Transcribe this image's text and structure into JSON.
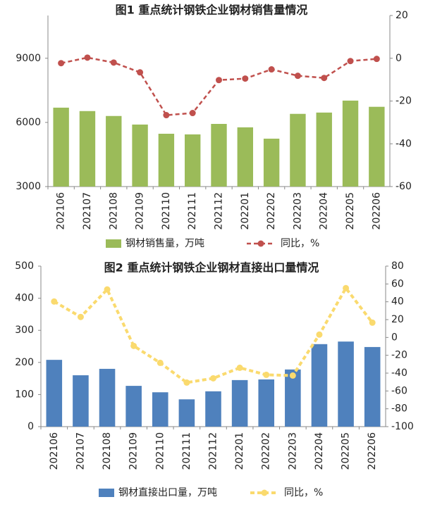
{
  "chart_data": [
    {
      "type": "bar-line",
      "title": "图1  重点统计钢铁企业钢材销售量情况",
      "categories": [
        "202106",
        "202107",
        "202108",
        "202109",
        "202110",
        "202111",
        "202112",
        "202201",
        "202202",
        "202203",
        "202204",
        "202205",
        "202206"
      ],
      "series": [
        {
          "name": "钢材销售量，万吨",
          "type": "bar",
          "color": "#9bbb59",
          "values": [
            6690,
            6530,
            6300,
            5900,
            5470,
            5440,
            5930,
            5770,
            5240,
            6400,
            6460,
            7020,
            6730
          ]
        },
        {
          "name": "同比，%",
          "type": "line",
          "axis": "y2",
          "color": "#c0504d",
          "values": [
            -2.3,
            0.3,
            -2,
            -6.6,
            -26.6,
            -25.6,
            -10.2,
            -9.5,
            -5.2,
            -8.2,
            -9.2,
            -1.3,
            -0.3
          ]
        }
      ],
      "ylim": [
        3000,
        11000
      ],
      "yticks": [
        3000,
        6000,
        9000
      ],
      "y2lim": [
        -60,
        20
      ],
      "y2ticks": [
        -60,
        -40,
        -20,
        0,
        20
      ],
      "grid": false
    },
    {
      "type": "bar-line",
      "title": "图2  重点统计钢铁企业钢材直接出口量情况",
      "categories": [
        "202106",
        "202107",
        "202108",
        "202109",
        "202110",
        "202111",
        "202112",
        "202201",
        "202202",
        "202203",
        "202204",
        "202205",
        "202206"
      ],
      "series": [
        {
          "name": "钢材直接出口量，万吨",
          "type": "bar",
          "color": "#4f81bd",
          "values": [
            208,
            160,
            180,
            127,
            107,
            85,
            110,
            145,
            147,
            178,
            257,
            265,
            248
          ]
        },
        {
          "name": "同比，%",
          "type": "line",
          "axis": "y2",
          "color": "#fada6e",
          "values": [
            40.3,
            23,
            53.8,
            -9.5,
            -28.5,
            -50.6,
            -45.8,
            -34,
            -41.9,
            -42.7,
            3.2,
            55.3,
            16.6
          ]
        }
      ],
      "ylim": [
        0,
        500
      ],
      "yticks": [
        0,
        100,
        200,
        300,
        400,
        500
      ],
      "y2lim": [
        -100,
        80
      ],
      "y2ticks": [
        -100,
        -80,
        -60,
        -40,
        -20,
        0,
        20,
        40,
        60,
        80
      ],
      "grid": false
    }
  ]
}
